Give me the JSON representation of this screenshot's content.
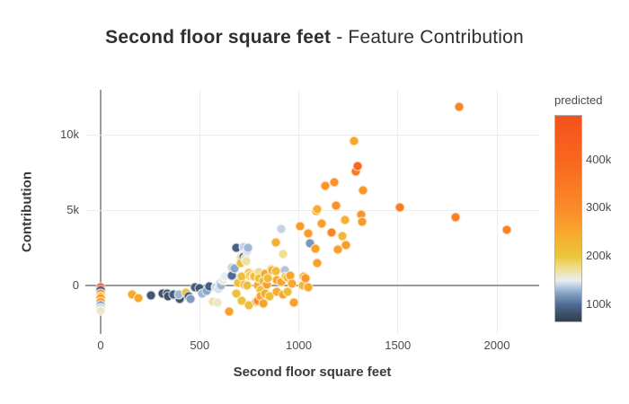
{
  "title": {
    "bold": "Second floor square feet",
    "suffix": " - Feature Contribution"
  },
  "chart_data": {
    "type": "scatter",
    "title": "Second floor square feet - Feature Contribution",
    "xlabel": "Second floor square feet",
    "ylabel": "Contribution",
    "xlim": [
      -77,
      2213
    ],
    "ylim": [
      -3200,
      13000
    ],
    "grid": true,
    "x_ticks": [
      {
        "v": 0,
        "label": "0"
      },
      {
        "v": 500,
        "label": "500"
      },
      {
        "v": 1000,
        "label": "1000"
      },
      {
        "v": 1500,
        "label": "1500"
      },
      {
        "v": 2000,
        "label": "2000"
      }
    ],
    "y_ticks": [
      {
        "v": 0,
        "label": "0"
      },
      {
        "v": 5000,
        "label": "5k"
      },
      {
        "v": 10000,
        "label": "10k"
      }
    ],
    "colormap": [
      [
        60,
        "#333e51"
      ],
      [
        80,
        "#3d4f68"
      ],
      [
        100,
        "#4f6c94"
      ],
      [
        125,
        "#8ba8c9"
      ],
      [
        140,
        "#c3d4e7"
      ],
      [
        150,
        "#e9edf2"
      ],
      [
        163,
        "#ece6bd"
      ],
      [
        180,
        "#eeda7e"
      ],
      [
        200,
        "#ecc63d"
      ],
      [
        250,
        "#f7a82d"
      ],
      [
        300,
        "#fa8a28"
      ],
      [
        400,
        "#f8671e"
      ],
      [
        492,
        "#f4511c"
      ]
    ],
    "colorbar": {
      "title": "predicted",
      "range_k": [
        65,
        492
      ],
      "ticks": [
        {
          "v": 100,
          "label": "100k"
        },
        {
          "v": 200,
          "label": "200k"
        },
        {
          "v": 300,
          "label": "300k"
        },
        {
          "v": 400,
          "label": "400k"
        }
      ]
    },
    "point_units": "[second_floor_sqft, contribution, predicted_thousands]",
    "points": [
      [
        0,
        -100,
        460
      ],
      [
        0,
        -280,
        95
      ],
      [
        0,
        -520,
        310
      ],
      [
        0,
        -700,
        230
      ],
      [
        0,
        -820,
        280
      ],
      [
        0,
        -1080,
        255
      ],
      [
        0,
        -1300,
        120
      ],
      [
        0,
        -1480,
        140
      ],
      [
        0,
        -1640,
        160
      ],
      [
        160,
        -600,
        245
      ],
      [
        190,
        -830,
        250
      ],
      [
        254,
        -650,
        85
      ],
      [
        313,
        -535,
        80
      ],
      [
        336,
        -535,
        85
      ],
      [
        340,
        -715,
        82
      ],
      [
        367,
        -595,
        88
      ],
      [
        400,
        -890,
        85
      ],
      [
        395,
        -560,
        130
      ],
      [
        430,
        -480,
        210
      ],
      [
        444,
        -714,
        88
      ],
      [
        455,
        -890,
        120
      ],
      [
        476,
        -120,
        88
      ],
      [
        500,
        -180,
        85
      ],
      [
        512,
        -535,
        130
      ],
      [
        535,
        -360,
        125
      ],
      [
        550,
        -20,
        90
      ],
      [
        567,
        -1071,
        170
      ],
      [
        580,
        -120,
        140
      ],
      [
        590,
        -1130,
        160
      ],
      [
        594,
        -240,
        145
      ],
      [
        605,
        180,
        140
      ],
      [
        608,
        -10,
        130
      ],
      [
        617,
        357,
        155
      ],
      [
        625,
        590,
        150
      ],
      [
        648,
        -1726,
        265
      ],
      [
        660,
        1190,
        140
      ],
      [
        660,
        650,
        100
      ],
      [
        675,
        1130,
        125
      ],
      [
        685,
        2500,
        92
      ],
      [
        685,
        -535,
        210
      ],
      [
        695,
        180,
        215
      ],
      [
        707,
        1845,
        170
      ],
      [
        707,
        1488,
        215
      ],
      [
        710,
        -1010,
        205
      ],
      [
        712,
        595,
        210
      ],
      [
        720,
        2600,
        140
      ],
      [
        721,
        1900,
        100
      ],
      [
        725,
        60,
        220
      ],
      [
        730,
        1790,
        175
      ],
      [
        735,
        1607,
        170
      ],
      [
        739,
        0,
        210
      ],
      [
        740,
        2260,
        145
      ],
      [
        743,
        2499,
        130
      ],
      [
        748,
        833,
        215
      ],
      [
        750,
        -1300,
        210
      ],
      [
        753,
        654,
        215
      ],
      [
        762,
        714,
        250
      ],
      [
        770,
        650,
        220
      ],
      [
        775,
        595,
        215
      ],
      [
        785,
        -1030,
        215
      ],
      [
        794,
        -1011,
        310
      ],
      [
        795,
        0,
        255
      ],
      [
        798,
        892,
        175
      ],
      [
        800,
        480,
        205
      ],
      [
        807,
        -297,
        205
      ],
      [
        807,
        -714,
        255
      ],
      [
        820,
        300,
        225
      ],
      [
        821,
        -1190,
        260
      ],
      [
        830,
        773,
        250
      ],
      [
        830,
        -535,
        245
      ],
      [
        839,
        60,
        260
      ],
      [
        843,
        476,
        215
      ],
      [
        852,
        -714,
        215
      ],
      [
        862,
        1071,
        245
      ],
      [
        866,
        1011,
        250
      ],
      [
        884,
        952,
        215
      ],
      [
        885,
        2900,
        240
      ],
      [
        889,
        357,
        250
      ],
      [
        889,
        -416,
        250
      ],
      [
        910,
        3750,
        140
      ],
      [
        911,
        238,
        255
      ],
      [
        921,
        2080,
        175
      ],
      [
        921,
        -595,
        255
      ],
      [
        930,
        1011,
        135
      ],
      [
        934,
        595,
        215
      ],
      [
        943,
        -416,
        220
      ],
      [
        943,
        535,
        215
      ],
      [
        957,
        654,
        255
      ],
      [
        966,
        119,
        250
      ],
      [
        975,
        -1130,
        265
      ],
      [
        1008,
        3950,
        270
      ],
      [
        1020,
        0,
        225
      ],
      [
        1025,
        600,
        225
      ],
      [
        1034,
        476,
        280
      ],
      [
        1048,
        -119,
        250
      ],
      [
        1048,
        3451,
        270
      ],
      [
        1055,
        2800,
        118
      ],
      [
        1085,
        2470,
        265
      ],
      [
        1088,
        4940,
        280
      ],
      [
        1093,
        5100,
        240
      ],
      [
        1095,
        1490,
        265
      ],
      [
        1115,
        4100,
        270
      ],
      [
        1134,
        6600,
        280
      ],
      [
        1165,
        3510,
        320
      ],
      [
        1179,
        6840,
        285
      ],
      [
        1190,
        5300,
        290
      ],
      [
        1195,
        2380,
        265
      ],
      [
        1220,
        3270,
        225
      ],
      [
        1235,
        4340,
        235
      ],
      [
        1240,
        2680,
        270
      ],
      [
        1280,
        9580,
        255
      ],
      [
        1290,
        7600,
        350
      ],
      [
        1297,
        7950,
        400
      ],
      [
        1315,
        4700,
        280
      ],
      [
        1320,
        4220,
        275
      ],
      [
        1325,
        6300,
        280
      ],
      [
        1510,
        5200,
        340
      ],
      [
        1810,
        11840,
        310
      ],
      [
        1790,
        4520,
        330
      ],
      [
        2050,
        3690,
        320
      ]
    ]
  }
}
